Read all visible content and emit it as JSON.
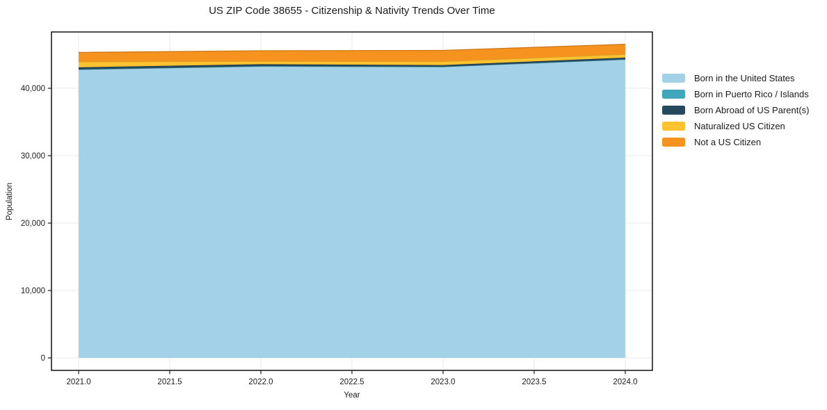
{
  "title": "US ZIP Code 38655 - Citizenship & Nativity Trends Over Time",
  "chart_data": {
    "type": "area",
    "stacked": true,
    "title": "US ZIP Code 38655 - Citizenship & Nativity Trends Over Time",
    "xlabel": "Year",
    "ylabel": "Population",
    "x": [
      2021,
      2022,
      2023,
      2024
    ],
    "series": [
      {
        "name": "Born in the United States",
        "color": "#a3d2e8",
        "values": [
          42780,
          43260,
          43180,
          44280
        ]
      },
      {
        "name": "Born in Puerto Rico / Islands",
        "color": "#41a5be",
        "values": [
          15,
          15,
          15,
          15
        ]
      },
      {
        "name": "Born Abroad of US Parent(s)",
        "color": "#26485c",
        "values": [
          310,
          300,
          240,
          250
        ]
      },
      {
        "name": "Naturalized US Citizen",
        "color": "#fcc230",
        "values": [
          820,
          430,
          540,
          500
        ]
      },
      {
        "name": "Not a US Citizen",
        "color": "#f6921e",
        "values": [
          1390,
          1560,
          1640,
          1480
        ]
      }
    ],
    "x_ticks": [
      2021.0,
      2021.5,
      2022.0,
      2022.5,
      2023.0,
      2023.5,
      2024.0
    ],
    "x_tick_labels": [
      "2021.0",
      "2021.5",
      "2022.0",
      "2022.5",
      "2023.0",
      "2023.5",
      "2024.0"
    ],
    "y_ticks": [
      0,
      10000,
      20000,
      30000,
      40000
    ],
    "y_tick_labels": [
      "0",
      "10,000",
      "20,000",
      "30,000",
      "40,000"
    ],
    "xlim": [
      2020.851,
      2024.149
    ],
    "ylim": [
      -1850,
      48350
    ],
    "grid": true,
    "grid_color": "#e9e9e9",
    "frame_color": "#000000",
    "tick_color": "#1a1a1a",
    "legend_position": "right"
  }
}
